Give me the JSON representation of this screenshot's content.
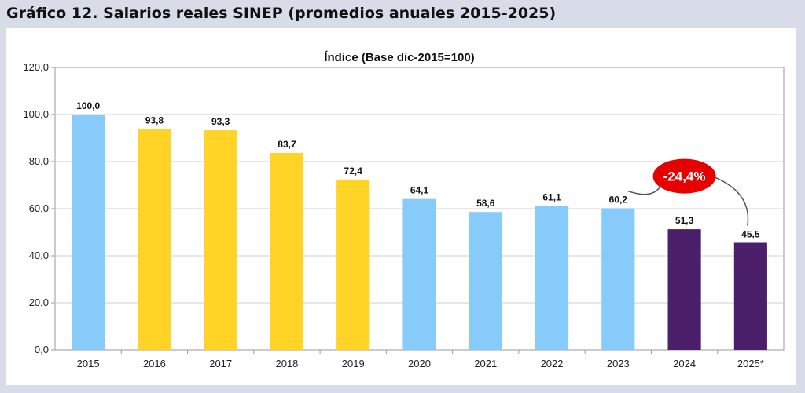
{
  "figure": {
    "title": "Gráfico 12.  Salarios reales SINEP (promedios anuales 2015-2025)"
  },
  "chart_data": {
    "type": "bar",
    "title": "Índice (Base dic-2015=100)",
    "xlabel": "",
    "ylabel": "",
    "categories": [
      "2015",
      "2016",
      "2017",
      "2018",
      "2019",
      "2020",
      "2021",
      "2022",
      "2023",
      "2024",
      "2025*"
    ],
    "values": [
      100.0,
      93.8,
      93.3,
      83.7,
      72.4,
      64.1,
      58.6,
      61.1,
      60.2,
      51.3,
      45.5
    ],
    "value_labels": [
      "100,0",
      "93,8",
      "93,3",
      "83,7",
      "72,4",
      "64,1",
      "58,6",
      "61,1",
      "60,2",
      "51,3",
      "45,5"
    ],
    "bar_colors": [
      "#87cbfb",
      "#ffd426",
      "#ffd426",
      "#ffd426",
      "#ffd426",
      "#87cbfb",
      "#87cbfb",
      "#87cbfb",
      "#87cbfb",
      "#4b1f6a",
      "#4b1f6a"
    ],
    "ylim": [
      0,
      120
    ],
    "yticks": [
      0,
      20,
      40,
      60,
      80,
      100,
      120
    ],
    "ytick_labels": [
      "0,0",
      "20,0",
      "40,0",
      "60,0",
      "80,0",
      "100,0",
      "120,0"
    ],
    "grid": true,
    "annotation": {
      "text": "-24,4%",
      "from_category": "2023",
      "to_category": "2025*",
      "bubble_color": "#e60000"
    }
  }
}
